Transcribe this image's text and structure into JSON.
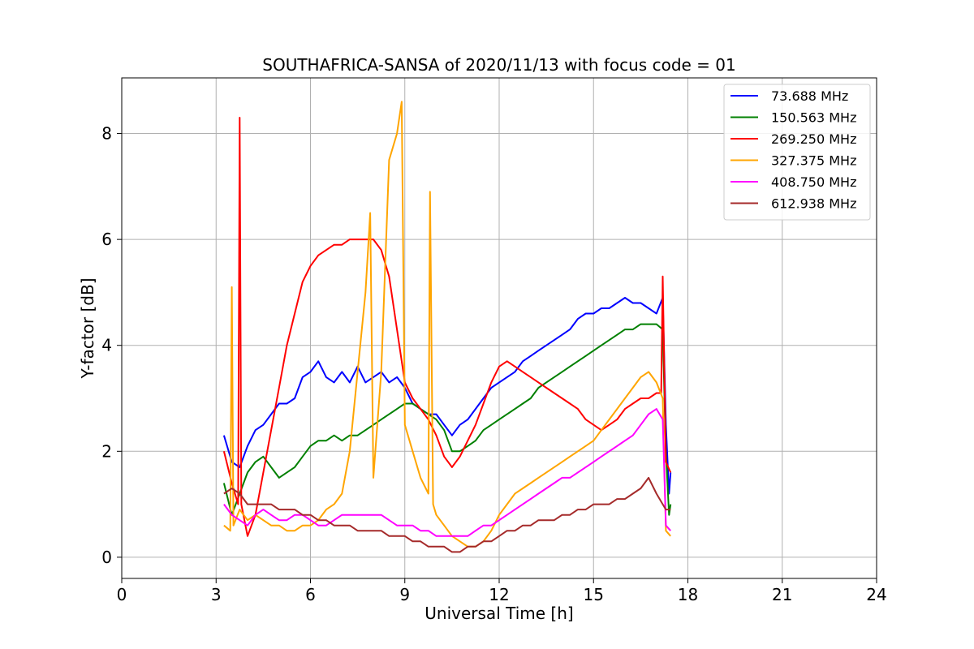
{
  "chart_data": {
    "type": "line",
    "title": "SOUTHAFRICA-SANSA of 2020/11/13 with focus code = 01",
    "xlabel": "Universal Time [h]",
    "ylabel": "Y-factor [dB]",
    "xlim": [
      0,
      24
    ],
    "ylim": [
      -0.4,
      9.05
    ],
    "xticks": [
      0,
      3,
      6,
      9,
      12,
      15,
      18,
      21,
      24
    ],
    "xtick_labels": [
      "0",
      "3",
      "6",
      "9",
      "12",
      "15",
      "18",
      "21",
      "24"
    ],
    "yticks": [
      0,
      2,
      4,
      6,
      8
    ],
    "ytick_labels": [
      "0",
      "2",
      "4",
      "6",
      "8"
    ],
    "grid": true,
    "legend_position": "top-right",
    "series": [
      {
        "name": " 73.688 MHz",
        "color": "#0000ff",
        "x": [
          3.25,
          3.5,
          3.75,
          4.0,
          4.25,
          4.5,
          4.75,
          5.0,
          5.25,
          5.5,
          5.75,
          6.0,
          6.25,
          6.5,
          6.75,
          7.0,
          7.25,
          7.5,
          7.75,
          8.0,
          8.25,
          8.5,
          8.75,
          9.0,
          9.25,
          9.5,
          9.75,
          10.0,
          10.25,
          10.5,
          10.75,
          11.0,
          11.25,
          11.5,
          11.75,
          12.0,
          12.25,
          12.5,
          12.75,
          13.0,
          13.25,
          13.5,
          13.75,
          14.0,
          14.25,
          14.5,
          14.75,
          15.0,
          15.25,
          15.5,
          15.75,
          16.0,
          16.25,
          16.5,
          16.75,
          17.0,
          17.2,
          17.3,
          17.4,
          17.45
        ],
        "y": [
          2.3,
          1.8,
          1.7,
          2.1,
          2.4,
          2.5,
          2.7,
          2.9,
          2.9,
          3.0,
          3.4,
          3.5,
          3.7,
          3.4,
          3.3,
          3.5,
          3.3,
          3.6,
          3.3,
          3.4,
          3.5,
          3.3,
          3.4,
          3.2,
          2.9,
          2.8,
          2.7,
          2.7,
          2.5,
          2.3,
          2.5,
          2.6,
          2.8,
          3.0,
          3.2,
          3.3,
          3.4,
          3.5,
          3.7,
          3.8,
          3.9,
          4.0,
          4.1,
          4.2,
          4.3,
          4.5,
          4.6,
          4.6,
          4.7,
          4.7,
          4.8,
          4.9,
          4.8,
          4.8,
          4.7,
          4.6,
          4.9,
          2.5,
          1.2,
          1.6
        ]
      },
      {
        "name": "150.563 MHz",
        "color": "#008000",
        "x": [
          3.25,
          3.5,
          3.75,
          4.0,
          4.25,
          4.5,
          4.75,
          5.0,
          5.25,
          5.5,
          5.75,
          6.0,
          6.25,
          6.5,
          6.75,
          7.0,
          7.25,
          7.5,
          7.75,
          8.0,
          8.25,
          8.5,
          8.75,
          9.0,
          9.25,
          9.5,
          9.75,
          10.0,
          10.25,
          10.5,
          10.75,
          11.0,
          11.25,
          11.5,
          11.75,
          12.0,
          12.25,
          12.5,
          12.75,
          13.0,
          13.25,
          13.5,
          13.75,
          14.0,
          14.25,
          14.5,
          14.75,
          15.0,
          15.25,
          15.5,
          15.75,
          16.0,
          16.25,
          16.5,
          16.75,
          17.0,
          17.2,
          17.3,
          17.4,
          17.45
        ],
        "y": [
          1.4,
          0.8,
          1.2,
          1.6,
          1.8,
          1.9,
          1.7,
          1.5,
          1.6,
          1.7,
          1.9,
          2.1,
          2.2,
          2.2,
          2.3,
          2.2,
          2.3,
          2.3,
          2.4,
          2.5,
          2.6,
          2.7,
          2.8,
          2.9,
          2.9,
          2.8,
          2.7,
          2.6,
          2.4,
          2.0,
          2.0,
          2.1,
          2.2,
          2.4,
          2.5,
          2.6,
          2.7,
          2.8,
          2.9,
          3.0,
          3.2,
          3.3,
          3.4,
          3.5,
          3.6,
          3.7,
          3.8,
          3.9,
          4.0,
          4.1,
          4.2,
          4.3,
          4.3,
          4.4,
          4.4,
          4.4,
          4.3,
          2.0,
          0.8,
          1.0
        ]
      },
      {
        "name": "269.250 MHz",
        "color": "#ff0000",
        "x": [
          3.25,
          3.5,
          3.7,
          3.75,
          3.8,
          4.0,
          4.25,
          4.5,
          4.75,
          5.0,
          5.25,
          5.5,
          5.75,
          6.0,
          6.25,
          6.5,
          6.75,
          7.0,
          7.25,
          7.5,
          7.75,
          8.0,
          8.25,
          8.5,
          8.75,
          9.0,
          9.25,
          9.5,
          9.75,
          10.0,
          10.25,
          10.5,
          10.75,
          11.0,
          11.25,
          11.5,
          11.75,
          12.0,
          12.25,
          12.5,
          12.75,
          13.0,
          13.25,
          13.5,
          13.75,
          14.0,
          14.25,
          14.5,
          14.75,
          15.0,
          15.25,
          15.5,
          15.75,
          16.0,
          16.25,
          16.5,
          16.75,
          17.0,
          17.15,
          17.2,
          17.3,
          17.45
        ],
        "y": [
          2.0,
          1.4,
          1.0,
          8.3,
          1.0,
          0.4,
          0.8,
          1.6,
          2.4,
          3.2,
          4.0,
          4.6,
          5.2,
          5.5,
          5.7,
          5.8,
          5.9,
          5.9,
          6.0,
          6.0,
          6.0,
          6.0,
          5.8,
          5.3,
          4.3,
          3.3,
          3.0,
          2.8,
          2.6,
          2.3,
          1.9,
          1.7,
          1.9,
          2.2,
          2.5,
          2.9,
          3.3,
          3.6,
          3.7,
          3.6,
          3.5,
          3.4,
          3.3,
          3.2,
          3.1,
          3.0,
          2.9,
          2.8,
          2.6,
          2.5,
          2.4,
          2.5,
          2.6,
          2.8,
          2.9,
          3.0,
          3.0,
          3.1,
          3.1,
          5.3,
          1.8,
          1.6
        ]
      },
      {
        "name": "327.375 MHz",
        "color": "#ffa500",
        "x": [
          3.25,
          3.45,
          3.5,
          3.55,
          3.75,
          4.0,
          4.25,
          4.5,
          4.75,
          5.0,
          5.25,
          5.5,
          5.75,
          6.0,
          6.25,
          6.5,
          6.75,
          7.0,
          7.25,
          7.5,
          7.75,
          7.9,
          8.0,
          8.25,
          8.5,
          8.75,
          8.9,
          9.0,
          9.25,
          9.5,
          9.75,
          9.8,
          9.9,
          10.0,
          10.25,
          10.5,
          10.75,
          11.0,
          11.25,
          11.5,
          11.75,
          12.0,
          12.25,
          12.5,
          12.75,
          13.0,
          13.25,
          13.5,
          13.75,
          14.0,
          14.25,
          14.5,
          14.75,
          15.0,
          15.25,
          15.5,
          15.75,
          16.0,
          16.25,
          16.5,
          16.75,
          17.0,
          17.2,
          17.3,
          17.45
        ],
        "y": [
          0.6,
          0.5,
          5.1,
          0.6,
          0.9,
          0.7,
          0.8,
          0.7,
          0.6,
          0.6,
          0.5,
          0.5,
          0.6,
          0.6,
          0.7,
          0.9,
          1.0,
          1.2,
          2.0,
          3.5,
          5.0,
          6.5,
          1.5,
          3.5,
          7.5,
          8.0,
          8.6,
          2.5,
          2.0,
          1.5,
          1.2,
          6.9,
          1.0,
          0.8,
          0.6,
          0.4,
          0.3,
          0.2,
          0.2,
          0.3,
          0.5,
          0.8,
          1.0,
          1.2,
          1.3,
          1.4,
          1.5,
          1.6,
          1.7,
          1.8,
          1.9,
          2.0,
          2.1,
          2.2,
          2.4,
          2.6,
          2.8,
          3.0,
          3.2,
          3.4,
          3.5,
          3.3,
          3.0,
          0.5,
          0.4
        ]
      },
      {
        "name": "408.750 MHz",
        "color": "#ff00ff",
        "x": [
          3.25,
          3.5,
          3.75,
          4.0,
          4.25,
          4.5,
          4.75,
          5.0,
          5.25,
          5.5,
          5.75,
          6.0,
          6.25,
          6.5,
          6.75,
          7.0,
          7.25,
          7.5,
          7.75,
          8.0,
          8.25,
          8.5,
          8.75,
          9.0,
          9.25,
          9.5,
          9.75,
          10.0,
          10.25,
          10.5,
          10.75,
          11.0,
          11.25,
          11.5,
          11.75,
          12.0,
          12.25,
          12.5,
          12.75,
          13.0,
          13.25,
          13.5,
          13.75,
          14.0,
          14.25,
          14.5,
          14.75,
          15.0,
          15.25,
          15.5,
          15.75,
          16.0,
          16.25,
          16.5,
          16.75,
          17.0,
          17.2,
          17.3,
          17.45
        ],
        "y": [
          1.0,
          0.8,
          0.7,
          0.6,
          0.8,
          0.9,
          0.8,
          0.7,
          0.7,
          0.8,
          0.8,
          0.7,
          0.6,
          0.6,
          0.7,
          0.8,
          0.8,
          0.8,
          0.8,
          0.8,
          0.8,
          0.7,
          0.6,
          0.6,
          0.6,
          0.5,
          0.5,
          0.4,
          0.4,
          0.4,
          0.4,
          0.4,
          0.5,
          0.6,
          0.6,
          0.7,
          0.8,
          0.9,
          1.0,
          1.1,
          1.2,
          1.3,
          1.4,
          1.5,
          1.5,
          1.6,
          1.7,
          1.8,
          1.9,
          2.0,
          2.1,
          2.2,
          2.3,
          2.5,
          2.7,
          2.8,
          2.6,
          0.6,
          0.5
        ]
      },
      {
        "name": "612.938 MHz",
        "color": "#a52a2a",
        "x": [
          3.25,
          3.5,
          3.75,
          4.0,
          4.25,
          4.5,
          4.75,
          5.0,
          5.25,
          5.5,
          5.75,
          6.0,
          6.25,
          6.5,
          6.75,
          7.0,
          7.25,
          7.5,
          7.75,
          8.0,
          8.25,
          8.5,
          8.75,
          9.0,
          9.25,
          9.5,
          9.75,
          10.0,
          10.25,
          10.5,
          10.75,
          11.0,
          11.25,
          11.5,
          11.75,
          12.0,
          12.25,
          12.5,
          12.75,
          13.0,
          13.25,
          13.5,
          13.75,
          14.0,
          14.25,
          14.5,
          14.75,
          15.0,
          15.25,
          15.5,
          15.75,
          16.0,
          16.25,
          16.5,
          16.75,
          17.0,
          17.2,
          17.3,
          17.45
        ],
        "y": [
          1.2,
          1.3,
          1.2,
          1.0,
          1.0,
          1.0,
          1.0,
          0.9,
          0.9,
          0.9,
          0.8,
          0.8,
          0.7,
          0.7,
          0.6,
          0.6,
          0.6,
          0.5,
          0.5,
          0.5,
          0.5,
          0.4,
          0.4,
          0.4,
          0.3,
          0.3,
          0.2,
          0.2,
          0.2,
          0.1,
          0.1,
          0.2,
          0.2,
          0.3,
          0.3,
          0.4,
          0.5,
          0.5,
          0.6,
          0.6,
          0.7,
          0.7,
          0.7,
          0.8,
          0.8,
          0.9,
          0.9,
          1.0,
          1.0,
          1.0,
          1.1,
          1.1,
          1.2,
          1.3,
          1.5,
          1.2,
          1.0,
          0.9,
          0.9
        ]
      }
    ]
  }
}
